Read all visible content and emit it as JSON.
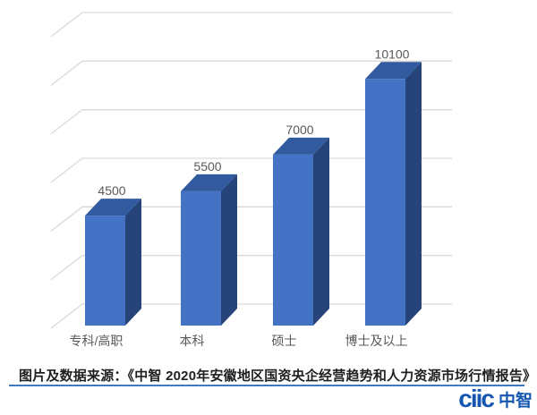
{
  "chart_data": {
    "type": "bar",
    "style": "3d-column",
    "title": "",
    "xlabel": "",
    "ylabel": "",
    "categories": [
      "专科/高职",
      "本科",
      "硕士",
      "博士及以上"
    ],
    "values": [
      4500,
      5500,
      7000,
      10100
    ],
    "data_labels": [
      "4500",
      "5500",
      "7000",
      "10100"
    ],
    "ylim": [
      0,
      12000
    ],
    "grid_step": 2000,
    "grid": true,
    "legend": false,
    "colors": {
      "bar_front": "#4472C4",
      "bar_top": "#325A9E",
      "bar_side": "#26437A",
      "gridline": "#D9D9D9",
      "label": "#595959"
    }
  },
  "footer": {
    "source_text": "图片及数据来源：《中智 2020年安徽地区国资央企经营趋势和人力资源市场行情报告》",
    "rule_color": "#3D7AC0",
    "logo": {
      "latin": "ciic",
      "cjk": "中智",
      "color": "#1557B0"
    }
  }
}
